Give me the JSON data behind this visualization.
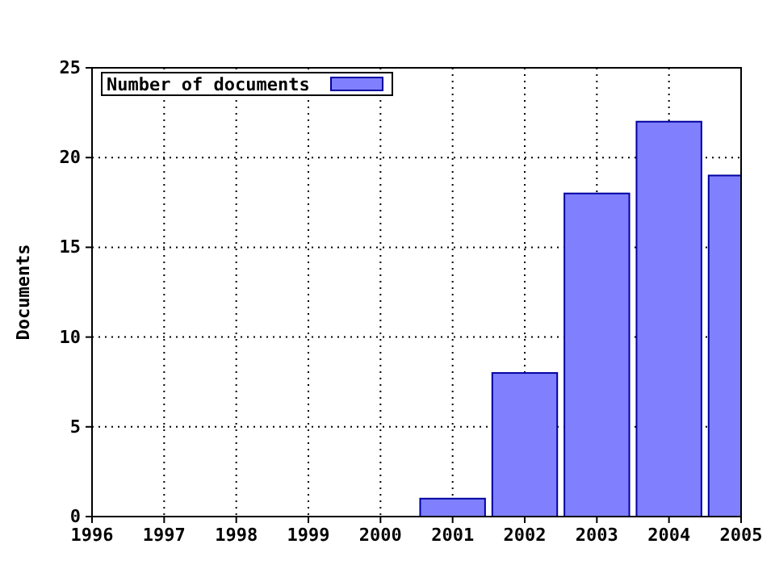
{
  "chart_data": {
    "type": "bar",
    "ylabel": "Documents",
    "x": [
      2001,
      2002,
      2003,
      2004,
      2005
    ],
    "series": [
      {
        "name": "Number of documents",
        "color": "#8080ff",
        "values": [
          1,
          8,
          18,
          22,
          19
        ]
      }
    ],
    "xlim": [
      1996,
      2005
    ],
    "xticks": [
      1996,
      1997,
      1998,
      1999,
      2000,
      2001,
      2002,
      2003,
      2004,
      2005
    ],
    "ylim": [
      0,
      25
    ],
    "yticks": [
      0,
      5,
      10,
      15,
      20,
      25
    ],
    "grid": true,
    "legend": "top left"
  }
}
